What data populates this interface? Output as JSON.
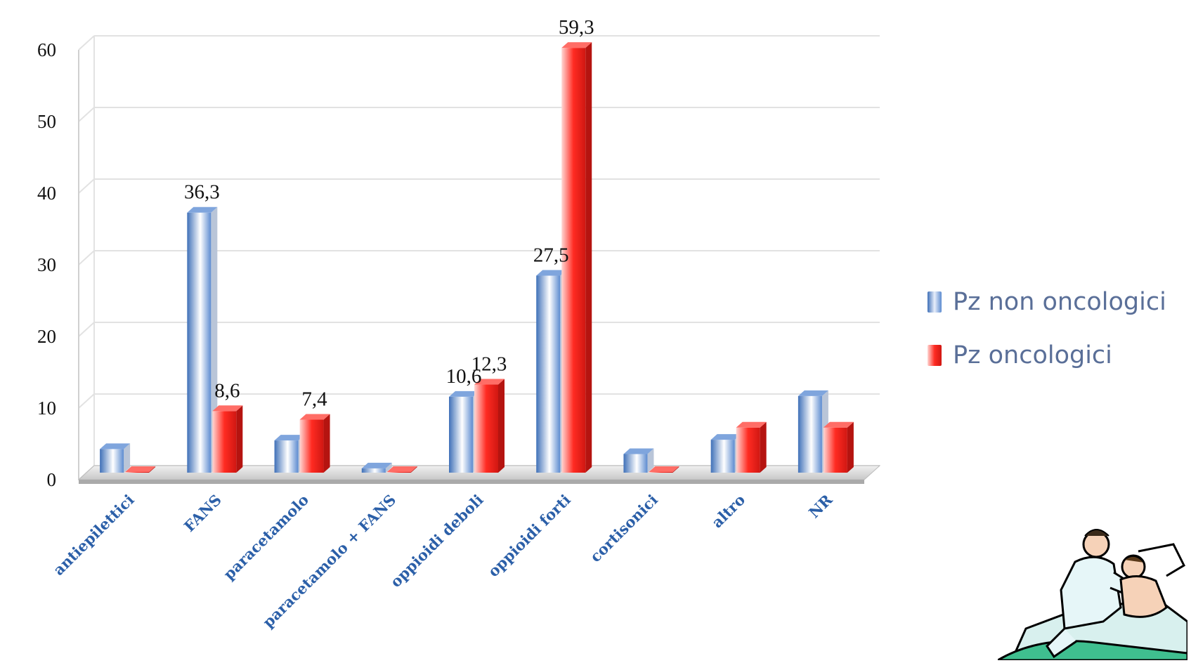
{
  "chart_data": {
    "type": "bar",
    "title": "",
    "xlabel": "",
    "ylabel": "",
    "ylim": [
      0,
      60
    ],
    "yticks": [
      0,
      10,
      20,
      30,
      40,
      50,
      60
    ],
    "grid": true,
    "legend_position": "right",
    "categories": [
      "antiepilettici",
      "FANS",
      "paracetamolo",
      "paracetamolo + FANS",
      "oppioidi deboli",
      "oppioidi forti",
      "cortisonici",
      "altro",
      "NR"
    ],
    "series": [
      {
        "name": "Pz non oncologici",
        "color": "#4f7fc4",
        "values": [
          3.3,
          36.3,
          4.5,
          0.6,
          10.6,
          27.5,
          2.6,
          4.6,
          10.7
        ],
        "data_labels": [
          "",
          "36,3",
          "",
          "",
          "10,6",
          "27,5",
          "",
          "",
          ""
        ]
      },
      {
        "name": "Pz oncologici",
        "color": "#e8201e",
        "values": [
          0.1,
          8.6,
          7.4,
          0.1,
          12.3,
          59.3,
          0.1,
          6.3,
          6.3
        ],
        "data_labels": [
          "",
          "8,6",
          "7,4",
          "",
          "12,3",
          "59,3",
          "",
          "",
          ""
        ]
      }
    ]
  },
  "clipart": {
    "icon": "doctor-patient-clipart-icon"
  }
}
